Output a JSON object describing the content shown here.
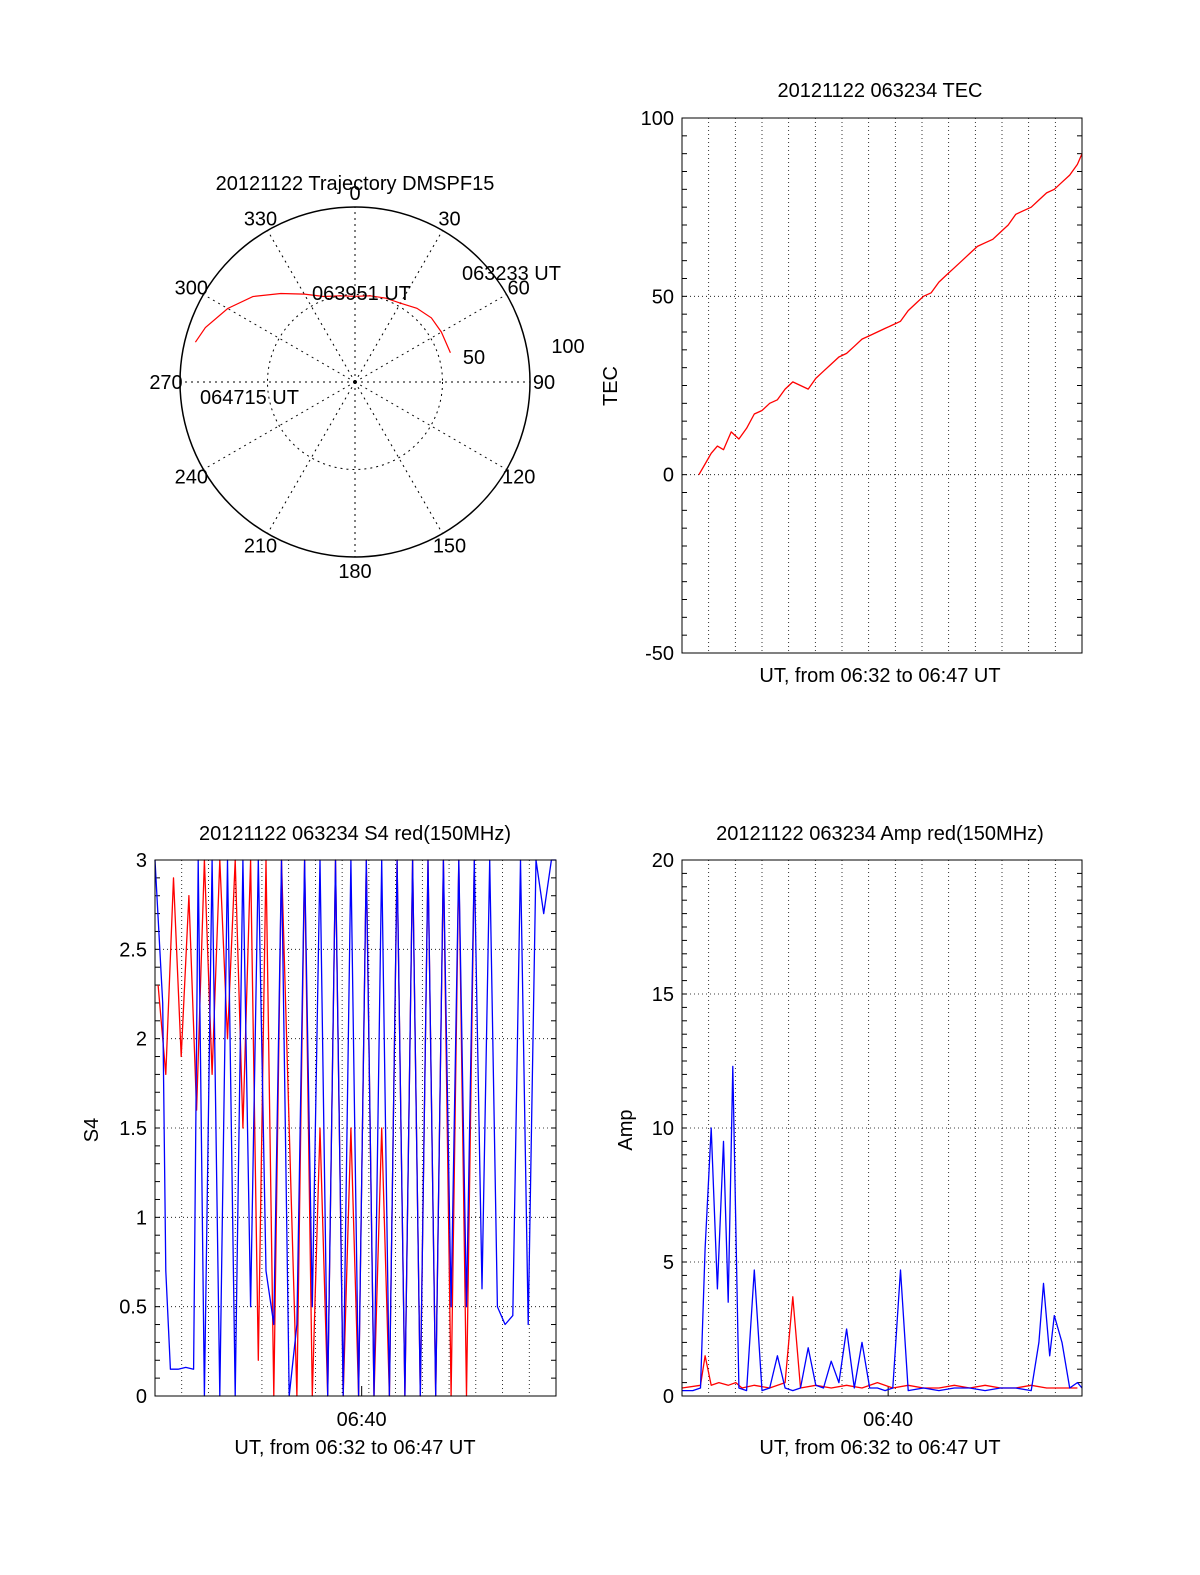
{
  "colors": {
    "red": "#ff0000",
    "blue": "#0000ff",
    "axis": "#000000",
    "grid": "#000000"
  },
  "chart_data": [
    {
      "type": "polar",
      "title": "20121122 Trajectory DMSPF15",
      "azimuth_labels": [
        "0",
        "30",
        "60",
        "90",
        "120",
        "150",
        "180",
        "210",
        "240",
        "270",
        "300",
        "330"
      ],
      "radial_labels": [
        "50",
        "100"
      ],
      "ring_values": [
        50,
        100
      ],
      "series": [
        {
          "color": "red",
          "points": [
            {
              "az": 73,
              "zen": 57
            },
            {
              "az": 60,
              "zen": 57
            },
            {
              "az": 50,
              "zen": 57
            },
            {
              "az": 40,
              "zen": 55
            },
            {
              "az": 30,
              "zen": 52
            },
            {
              "az": 20,
              "zen": 51
            },
            {
              "az": 10,
              "zen": 50
            },
            {
              "az": 0,
              "zen": 49
            },
            {
              "az": -10,
              "zen": 50
            },
            {
              "az": -20,
              "zen": 52
            },
            {
              "az": -30,
              "zen": 58
            },
            {
              "az": -40,
              "zen": 66
            },
            {
              "az": -50,
              "zen": 76
            },
            {
              "az": -60,
              "zen": 84
            },
            {
              "az": -70,
              "zen": 91
            },
            {
              "az": -76,
              "zen": 94
            }
          ]
        }
      ],
      "annotations": [
        {
          "text": "063233 UT",
          "az": 73,
          "zen": 57
        },
        {
          "text": "063951 UT",
          "az": -4,
          "zen": 49
        },
        {
          "text": "064715 UT",
          "az": -76,
          "zen": 94
        }
      ]
    },
    {
      "type": "line",
      "title": "20121122 063234 TEC",
      "xlabel": "UT, from 06:32 to 06:47 UT",
      "ylabel": "TEC",
      "xlim": [
        6.533,
        6.793
      ],
      "ylim": [
        -50,
        100
      ],
      "yticks": [
        "100",
        "50",
        "0",
        "-50"
      ],
      "ytick_values": [
        100,
        50,
        0,
        -50
      ],
      "series": [
        {
          "color": "red",
          "x": [
            6.544,
            6.548,
            6.552,
            6.556,
            6.56,
            6.565,
            6.57,
            6.575,
            6.58,
            6.585,
            6.59,
            6.595,
            6.6,
            6.605,
            6.61,
            6.615,
            6.62,
            6.625,
            6.63,
            6.635,
            6.64,
            6.645,
            6.65,
            6.655,
            6.66,
            6.665,
            6.67,
            6.675,
            6.68,
            6.685,
            6.69,
            6.695,
            6.7,
            6.705,
            6.71,
            6.715,
            6.72,
            6.725,
            6.73,
            6.735,
            6.74,
            6.745,
            6.75,
            6.755,
            6.76,
            6.765,
            6.77,
            6.775,
            6.78,
            6.785,
            6.79,
            6.793
          ],
          "y": [
            0,
            3,
            6,
            8,
            7,
            12,
            10,
            13,
            17,
            18,
            20,
            21,
            24,
            26,
            25,
            24,
            27,
            29,
            31,
            33,
            34,
            36,
            38,
            39,
            40,
            41,
            42,
            43,
            46,
            48,
            50,
            51,
            54,
            56,
            58,
            60,
            62,
            64,
            65,
            66,
            68,
            70,
            73,
            74,
            75,
            77,
            79,
            80,
            82,
            84,
            87,
            90
          ]
        }
      ]
    },
    {
      "type": "line",
      "title": "20121122 063234 S4 red(150MHz)",
      "xlabel": "UT, from 06:32 to 06:47 UT",
      "ylabel": "S4",
      "xlim": [
        6.533,
        6.793
      ],
      "ylim": [
        0,
        3
      ],
      "yticks": [
        "3",
        "2.5",
        "2",
        "1.5",
        "1",
        "0.5",
        "0"
      ],
      "ytick_values": [
        3,
        2.5,
        2,
        1.5,
        1,
        0.5,
        0
      ],
      "xtick_label": "06:40",
      "xtick_value": 6.667,
      "series": [
        {
          "color": "red",
          "x": [
            6.535,
            6.54,
            6.545,
            6.55,
            6.555,
            6.56,
            6.565,
            6.57,
            6.575,
            6.58,
            6.585,
            6.59,
            6.595,
            6.6,
            6.605,
            6.61,
            6.615,
            6.62,
            6.625,
            6.63,
            6.635,
            6.64,
            6.645,
            6.65,
            6.655,
            6.66,
            6.665,
            6.67,
            6.675,
            6.68,
            6.685,
            6.69,
            6.695,
            6.7,
            6.705,
            6.71,
            6.715,
            6.72,
            6.725,
            6.73,
            6.735,
            6.74
          ],
          "y": [
            2.3,
            1.8,
            2.9,
            1.9,
            2.8,
            1.6,
            3.0,
            1.8,
            3.0,
            2.0,
            3.0,
            1.5,
            3.0,
            0.2,
            3.0,
            0.0,
            3.0,
            1.5,
            0.0,
            3.0,
            0.0,
            1.5,
            0.0,
            3.0,
            0.0,
            1.5,
            0.0,
            3.0,
            0.0,
            1.5,
            0.0,
            3.0,
            0.0,
            3.0,
            0.0,
            3.0,
            0.0,
            3.0,
            0.0,
            3.0,
            0.0,
            3.0
          ]
        },
        {
          "color": "blue",
          "x": [
            6.533,
            6.538,
            6.54,
            6.543,
            6.548,
            6.553,
            6.558,
            6.561,
            6.565,
            6.57,
            6.575,
            6.58,
            6.585,
            6.59,
            6.595,
            6.6,
            6.605,
            6.61,
            6.615,
            6.62,
            6.625,
            6.63,
            6.635,
            6.64,
            6.645,
            6.65,
            6.655,
            6.66,
            6.665,
            6.67,
            6.675,
            6.68,
            6.685,
            6.69,
            6.695,
            6.7,
            6.705,
            6.71,
            6.715,
            6.72,
            6.725,
            6.73,
            6.735,
            6.74,
            6.745,
            6.75,
            6.755,
            6.76,
            6.765,
            6.77,
            6.775,
            6.78,
            6.785,
            6.79,
            6.793
          ],
          "y": [
            3.0,
            2.2,
            0.7,
            0.15,
            0.15,
            0.16,
            0.15,
            3.0,
            0.0,
            3.0,
            0.0,
            3.0,
            0.0,
            3.0,
            0.5,
            3.0,
            0.7,
            0.4,
            3.0,
            0.0,
            0.4,
            3.0,
            0.5,
            3.0,
            0.0,
            3.0,
            0.0,
            3.0,
            0.0,
            3.0,
            0.0,
            3.0,
            0.0,
            3.0,
            0.0,
            3.0,
            0.0,
            3.0,
            0.0,
            3.0,
            0.5,
            3.0,
            0.5,
            3.0,
            0.6,
            3.0,
            0.5,
            0.4,
            0.45,
            3.0,
            0.4,
            3.0,
            2.7,
            3.0,
            3.0
          ]
        }
      ]
    },
    {
      "type": "line",
      "title": "20121122 063234 Amp red(150MHz)",
      "xlabel": "UT, from 06:32 to 06:47 UT",
      "ylabel": "Amp",
      "xlim": [
        6.533,
        6.793
      ],
      "ylim": [
        0,
        20
      ],
      "yticks": [
        "20",
        "15",
        "10",
        "5",
        "0"
      ],
      "ytick_values": [
        20,
        15,
        10,
        5,
        0
      ],
      "xtick_label": "06:40",
      "xtick_value": 6.667,
      "series": [
        {
          "color": "red",
          "x": [
            6.533,
            6.545,
            6.548,
            6.552,
            6.557,
            6.563,
            6.568,
            6.572,
            6.58,
            6.59,
            6.6,
            6.605,
            6.61,
            6.62,
            6.63,
            6.64,
            6.65,
            6.66,
            6.67,
            6.68,
            6.69,
            6.7,
            6.71,
            6.72,
            6.73,
            6.74,
            6.75,
            6.76,
            6.77,
            6.78,
            6.79
          ],
          "y": [
            0.3,
            0.4,
            1.5,
            0.4,
            0.5,
            0.4,
            0.5,
            0.3,
            0.4,
            0.3,
            0.5,
            3.7,
            0.3,
            0.4,
            0.3,
            0.4,
            0.3,
            0.5,
            0.3,
            0.4,
            0.3,
            0.3,
            0.4,
            0.3,
            0.4,
            0.3,
            0.3,
            0.4,
            0.3,
            0.3,
            0.3
          ]
        },
        {
          "color": "blue",
          "x": [
            6.533,
            6.54,
            6.545,
            6.548,
            6.552,
            6.556,
            6.56,
            6.563,
            6.566,
            6.57,
            6.575,
            6.58,
            6.585,
            6.59,
            6.595,
            6.6,
            6.605,
            6.61,
            6.615,
            6.62,
            6.625,
            6.63,
            6.635,
            6.64,
            6.645,
            6.65,
            6.655,
            6.66,
            6.665,
            6.67,
            6.675,
            6.68,
            6.69,
            6.7,
            6.71,
            6.72,
            6.73,
            6.74,
            6.75,
            6.76,
            6.765,
            6.768,
            6.772,
            6.775,
            6.78,
            6.785,
            6.79,
            6.793
          ],
          "y": [
            0.2,
            0.2,
            0.3,
            5.5,
            10.0,
            4.0,
            9.5,
            3.5,
            12.3,
            0.3,
            0.2,
            4.7,
            0.2,
            0.3,
            1.5,
            0.3,
            0.2,
            0.3,
            1.8,
            0.4,
            0.3,
            1.3,
            0.5,
            2.5,
            0.3,
            2.0,
            0.3,
            0.3,
            0.2,
            0.3,
            4.7,
            0.2,
            0.3,
            0.2,
            0.3,
            0.3,
            0.2,
            0.3,
            0.3,
            0.2,
            2.0,
            4.2,
            1.5,
            3.0,
            2.0,
            0.3,
            0.5,
            0.3
          ]
        }
      ]
    }
  ]
}
